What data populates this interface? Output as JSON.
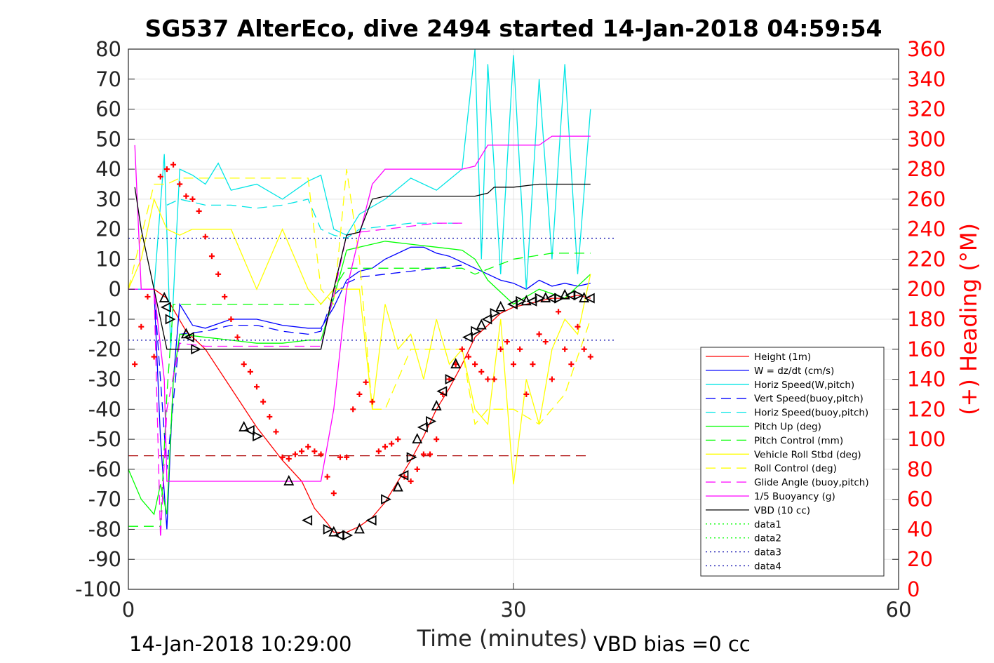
{
  "chart_data": {
    "type": "line",
    "title": "SG537 AlterEco, dive 2494 started 14-Jan-2018 04:59:54",
    "xlabel": "Time (minutes)",
    "ylabel": "",
    "ylabel_right": "(+) Heading (°M)",
    "xlim": [
      0,
      60
    ],
    "ylim": [
      -100,
      80
    ],
    "ylim_right": [
      0,
      360
    ],
    "x_ticks": [
      "0",
      "30",
      "60"
    ],
    "y_ticks": [
      "80",
      "70",
      "60",
      "50",
      "40",
      "30",
      "20",
      "10",
      "0",
      "-10",
      "-20",
      "-30",
      "-40",
      "-50",
      "-60",
      "-70",
      "-80",
      "-90",
      "-100"
    ],
    "y_ticks_right": [
      "360",
      "340",
      "320",
      "300",
      "280",
      "260",
      "240",
      "220",
      "200",
      "180",
      "160",
      "140",
      "120",
      "100",
      "80",
      "60",
      "40",
      "20",
      "0"
    ],
    "grid": true,
    "legend_position": "lower-right",
    "footer_left": "14-Jan-2018 10:29:00",
    "footer_right": "VBD bias =0 cc",
    "colors": {
      "height": "#ff0000",
      "w": "#0000ff",
      "horiz": "#00e5e5",
      "pitch": "#00ff00",
      "roll": "#ffff00",
      "glide": "#ff00ff",
      "vbd": "#000000",
      "heading": "#ff0000"
    },
    "series": [
      {
        "name": "Height (1m)",
        "color": "#ff0000",
        "dash": "solid",
        "x": [
          0,
          2,
          3,
          4.5,
          6,
          8,
          10,
          12,
          13.5,
          14.5,
          15.5,
          16,
          17,
          18,
          19,
          20,
          21,
          22,
          23,
          24,
          25,
          26,
          27,
          28,
          29,
          30,
          31,
          32,
          33,
          34,
          35,
          36
        ],
        "y": [
          0,
          0,
          -3,
          -14,
          -20,
          -33,
          -46,
          -57,
          -64,
          -73,
          -78,
          -81,
          -81,
          -79,
          -76,
          -71,
          -64,
          -57,
          -49,
          -40,
          -33,
          -25,
          -16,
          -12,
          -8,
          -6,
          -5,
          -4,
          -3,
          -3,
          -2,
          -3
        ]
      },
      {
        "name": "W = dz/dt (cm/s)",
        "color": "#0000ff",
        "dash": "solid",
        "x": [
          0,
          2,
          2.5,
          3,
          3.5,
          4,
          5,
          6,
          8,
          10,
          12,
          14,
          15,
          16,
          17,
          18,
          19,
          20,
          21,
          22,
          23,
          24,
          25,
          26,
          27,
          28,
          29,
          30,
          31,
          32,
          33,
          34,
          35,
          36
        ],
        "y": [
          0,
          0,
          -50,
          -80,
          -30,
          -5,
          -12,
          -13,
          -10,
          -10,
          -12,
          -13,
          -13,
          -6,
          3,
          6,
          7,
          10,
          12,
          14,
          14,
          12,
          11,
          9,
          7,
          5,
          3,
          2,
          0,
          3,
          1,
          2,
          1,
          2
        ]
      },
      {
        "name": "Horiz Speed(W,pitch)",
        "color": "#00e5e5",
        "dash": "solid",
        "x": [
          0,
          2,
          2.8,
          3.3,
          4,
          5,
          6,
          7,
          8,
          10,
          12,
          14,
          15,
          16,
          17,
          18,
          20,
          22,
          24,
          26,
          27,
          27.5,
          28,
          29,
          30,
          31,
          32,
          33,
          34,
          35,
          36
        ],
        "y": [
          0,
          0,
          45,
          -20,
          40,
          38,
          35,
          42,
          33,
          35,
          30,
          36,
          38,
          20,
          18,
          25,
          30,
          37,
          33,
          40,
          80,
          10,
          75,
          5,
          78,
          0,
          70,
          10,
          75,
          5,
          60
        ]
      },
      {
        "name": "Vert Speed(buoy,pitch)",
        "color": "#0000ff",
        "dash": "dashed",
        "x": [
          0,
          2,
          3,
          4,
          6,
          8,
          10,
          12,
          14,
          15,
          16,
          17,
          18,
          20,
          22,
          24,
          26
        ],
        "y": [
          0,
          0,
          -60,
          -15,
          -14,
          -12,
          -12,
          -14,
          -15,
          -14,
          -2,
          2,
          4,
          5,
          6,
          7,
          8
        ]
      },
      {
        "name": "Horiz Speed(buoy,pitch)",
        "color": "#00e5e5",
        "dash": "dashed",
        "x": [
          3,
          4,
          6,
          8,
          10,
          12,
          14,
          15,
          16,
          17,
          18,
          20,
          22,
          24,
          26
        ],
        "y": [
          28,
          30,
          28,
          28,
          27,
          28,
          30,
          20,
          18,
          17,
          20,
          21,
          22,
          22,
          22
        ]
      },
      {
        "name": "Pitch Up (deg)",
        "color": "#00ff00",
        "dash": "solid",
        "x": [
          0,
          1,
          2,
          2.5,
          3,
          3.5,
          4,
          6,
          8,
          10,
          12,
          14,
          15,
          16,
          17,
          18,
          20,
          22,
          24,
          26,
          27,
          28,
          30,
          32,
          34,
          36
        ],
        "y": [
          -60,
          -70,
          -75,
          -65,
          -75,
          -30,
          -15,
          -16,
          -17,
          -18,
          -18,
          -17,
          -17,
          -3,
          13,
          14,
          16,
          15,
          14,
          13,
          10,
          3,
          -5,
          0,
          -3,
          5
        ]
      },
      {
        "name": "Pitch Control (mm)",
        "color": "#00ff00",
        "dash": "dashed",
        "x": [
          0,
          2,
          2.5,
          3,
          3.5,
          4,
          8,
          12,
          14.5,
          15,
          16,
          17,
          26,
          27,
          30,
          33,
          36
        ],
        "y": [
          -79,
          -79,
          -79,
          -35,
          -5,
          -5,
          -5,
          -5,
          -5,
          -5,
          0,
          7,
          7,
          5,
          10,
          12,
          12
        ]
      },
      {
        "name": "Vehicle Roll Stbd (deg)",
        "color": "#ffff00",
        "dash": "solid",
        "x": [
          0,
          1,
          2,
          3,
          4,
          5,
          6,
          8,
          10,
          12,
          14,
          15,
          16,
          18,
          19,
          20,
          21,
          22,
          23,
          24,
          25,
          26,
          27,
          28,
          29,
          30,
          31,
          32,
          33,
          34,
          35,
          36
        ],
        "y": [
          0,
          10,
          30,
          20,
          18,
          20,
          20,
          20,
          0,
          20,
          0,
          -5,
          0,
          0,
          -40,
          -5,
          -20,
          -15,
          -30,
          -10,
          -25,
          -20,
          -40,
          -45,
          -10,
          -65,
          -30,
          -45,
          -20,
          -10,
          -15,
          5
        ]
      },
      {
        "name": "Roll Control (deg)",
        "color": "#ffff00",
        "dash": "dashed",
        "x": [
          0,
          2,
          3,
          4,
          6,
          8,
          10,
          12,
          14,
          15,
          16,
          17,
          18,
          19,
          20,
          21,
          22,
          26,
          27,
          28,
          30,
          32,
          34,
          36
        ],
        "y": [
          0,
          35,
          35,
          37,
          37,
          37,
          37,
          37,
          37,
          0,
          -5,
          40,
          10,
          -40,
          -40,
          -30,
          -20,
          -20,
          -45,
          -40,
          -40,
          -45,
          -35,
          -10
        ]
      },
      {
        "name": "Glide Angle (buoy,pitch)",
        "color": "#ff00ff",
        "dash": "dashed",
        "x": [
          0,
          2,
          2.5,
          3,
          4,
          6,
          8,
          10,
          12,
          14,
          15,
          16,
          17,
          18,
          20,
          22,
          24,
          26
        ],
        "y": [
          0,
          0,
          -83,
          -40,
          -18,
          -19,
          -19,
          -19,
          -19,
          -19,
          -19,
          -2,
          18,
          19,
          20,
          21,
          22,
          22
        ]
      },
      {
        "name": "1/5 Buoyancy (g)",
        "color": "#ff00ff",
        "dash": "solid",
        "x": [
          0.5,
          1,
          2,
          2.8,
          3,
          8,
          12,
          14,
          15,
          16,
          17,
          18,
          19,
          20,
          22,
          24,
          26,
          27,
          28,
          30,
          32,
          33,
          34,
          36
        ],
        "y": [
          48,
          0,
          0,
          -30,
          -64,
          -64,
          -64,
          -64,
          -64,
          -40,
          0,
          18,
          35,
          40,
          40,
          40,
          40,
          41,
          48,
          48,
          48,
          51,
          51,
          51
        ]
      },
      {
        "name": "VBD (10 cc)",
        "color": "#000000",
        "dash": "solid",
        "x": [
          0.5,
          1,
          2,
          2.5,
          3,
          4,
          6,
          8,
          10,
          12,
          14,
          15,
          16,
          17,
          18,
          19,
          20,
          22,
          24,
          26,
          27,
          28,
          28.5,
          30,
          32,
          33,
          34,
          36
        ],
        "y": [
          34,
          20,
          0,
          -10,
          -20,
          -20,
          -20,
          -20,
          -20,
          -20,
          -20,
          -20,
          0,
          18,
          19,
          30,
          31,
          31,
          31,
          31,
          31,
          32,
          34,
          34,
          35,
          35,
          35,
          35
        ]
      },
      {
        "name": "data1",
        "color": "#00ff00",
        "dash": "dotted",
        "x": [],
        "y": []
      },
      {
        "name": "data2",
        "color": "#00ff00",
        "dash": "dotted",
        "x": [],
        "y": []
      },
      {
        "name": "data3",
        "color": "#0000aa",
        "dash": "dotted",
        "x": [
          0,
          38
        ],
        "y": [
          17,
          17
        ]
      },
      {
        "name": "data4",
        "color": "#0000aa",
        "dash": "dotted",
        "x": [
          0,
          38
        ],
        "y": [
          -17,
          -17
        ]
      }
    ],
    "reference_lines": [
      {
        "color": "#aa0000",
        "dash": "dashed",
        "y": -55.5,
        "x": [
          0,
          36
        ]
      }
    ],
    "heading": {
      "name": "(+) Heading (°M)",
      "color": "#ff0000",
      "x": [
        0.5,
        1,
        1.5,
        2,
        2.5,
        3,
        3.5,
        4,
        4.5,
        5,
        5.5,
        6,
        6.5,
        7,
        7.5,
        8,
        8.5,
        9,
        9.5,
        10,
        10.5,
        11,
        11.5,
        12,
        12.5,
        13,
        13.5,
        14,
        14.5,
        15,
        15.5,
        16,
        16.5,
        17,
        17.5,
        18,
        18.5,
        19,
        19.5,
        20,
        20.5,
        21,
        21.5,
        22,
        22.5,
        23,
        23.5,
        24,
        24.5,
        25,
        25.5,
        26,
        26.5,
        27,
        27.5,
        28,
        28.5,
        29,
        29.5,
        30,
        30.5,
        31,
        31.5,
        32,
        32.5,
        33,
        33.5,
        34,
        34.5,
        35,
        35.5,
        36
      ],
      "y": [
        150,
        175,
        195,
        155,
        275,
        280,
        283,
        270,
        262,
        260,
        252,
        235,
        222,
        210,
        195,
        180,
        168,
        150,
        145,
        135,
        125,
        115,
        105,
        88,
        87,
        90,
        92,
        95,
        92,
        90,
        75,
        64,
        88,
        88,
        120,
        130,
        138,
        125,
        92,
        95,
        97,
        100,
        75,
        72,
        80,
        90,
        90,
        100,
        130,
        140,
        150,
        160,
        155,
        150,
        145,
        140,
        140,
        160,
        165,
        150,
        160,
        130,
        150,
        170,
        165,
        140,
        185,
        160,
        150,
        175,
        160,
        155
      ]
    },
    "markers": {
      "color": "#000000",
      "x": [
        2.8,
        3.0,
        3.2,
        4.5,
        4.8,
        5.2,
        9.0,
        9.5,
        10.0,
        12.5,
        14.0,
        15.5,
        16.0,
        16.5,
        17.0,
        18.0,
        19.0,
        20.0,
        21.0,
        21.5,
        22.0,
        22.5,
        23.0,
        23.5,
        24.0,
        24.5,
        25.0,
        25.5,
        26.5,
        27.0,
        27.5,
        28.0,
        28.5,
        29.0,
        30.0,
        30.5,
        31.0,
        31.5,
        32.0,
        32.5,
        33.0,
        33.5,
        34.0,
        34.5,
        35.0,
        35.5,
        36.0
      ],
      "y": [
        -3,
        -6,
        -10,
        -15,
        -16,
        -20,
        -46,
        -47,
        -49,
        -64,
        -77,
        -80,
        -81,
        -82,
        -82,
        -80,
        -77,
        -70,
        -66,
        -62,
        -56,
        -50,
        -46,
        -44,
        -39,
        -34,
        -30,
        -25,
        -16,
        -14,
        -12,
        -10,
        -8,
        -6,
        -5,
        -4,
        -4,
        -4,
        -3,
        -3,
        -3,
        -3,
        -2,
        -2,
        -2,
        -3,
        -3
      ]
    }
  }
}
